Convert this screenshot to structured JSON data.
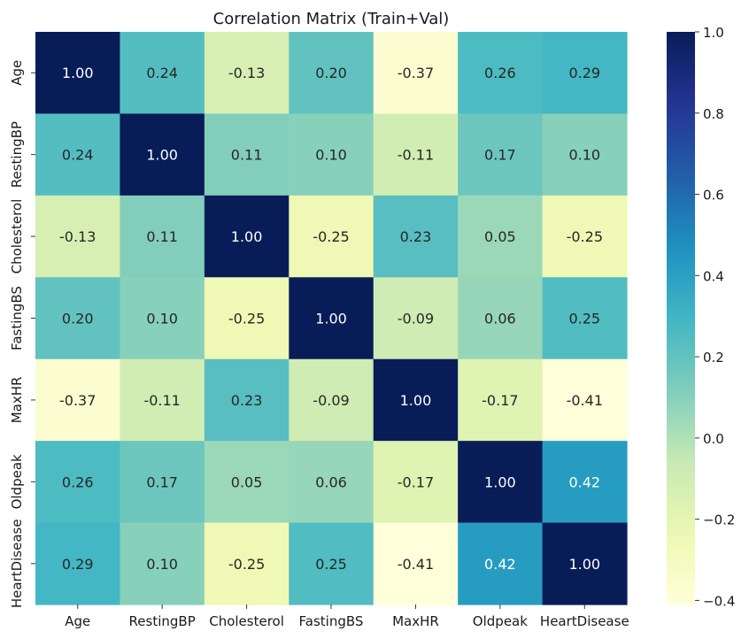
{
  "chart_data": {
    "type": "heatmap",
    "title": "Correlation Matrix (Train+Val)",
    "xlabel": "",
    "ylabel": "",
    "x_categories": [
      "Age",
      "RestingBP",
      "Cholesterol",
      "FastingBS",
      "MaxHR",
      "Oldpeak",
      "HeartDisease"
    ],
    "y_categories": [
      "Age",
      "RestingBP",
      "Cholesterol",
      "FastingBS",
      "MaxHR",
      "Oldpeak",
      "HeartDisease"
    ],
    "values": [
      [
        1.0,
        0.24,
        -0.13,
        0.2,
        -0.37,
        0.26,
        0.29
      ],
      [
        0.24,
        1.0,
        0.11,
        0.1,
        -0.11,
        0.17,
        0.1
      ],
      [
        -0.13,
        0.11,
        1.0,
        -0.25,
        0.23,
        0.05,
        -0.25
      ],
      [
        0.2,
        0.1,
        -0.25,
        1.0,
        -0.09,
        0.06,
        0.25
      ],
      [
        -0.37,
        -0.11,
        0.23,
        -0.09,
        1.0,
        -0.17,
        -0.41
      ],
      [
        0.26,
        0.17,
        0.05,
        0.06,
        -0.17,
        1.0,
        0.42
      ],
      [
        0.29,
        0.1,
        -0.25,
        0.25,
        -0.41,
        0.42,
        1.0
      ]
    ],
    "annotation_format": "2 decimals",
    "colormap": "YlGnBu",
    "colorbar": {
      "min": -0.41,
      "max": 1.0,
      "ticks": [
        1.0,
        0.8,
        0.6,
        0.4,
        0.2,
        0.0,
        -0.2,
        -0.4
      ],
      "tick_labels": [
        "1.0",
        "0.8",
        "0.6",
        "0.4",
        "0.2",
        "0.0",
        "−0.2",
        "−0.4"
      ]
    },
    "grid": false
  }
}
